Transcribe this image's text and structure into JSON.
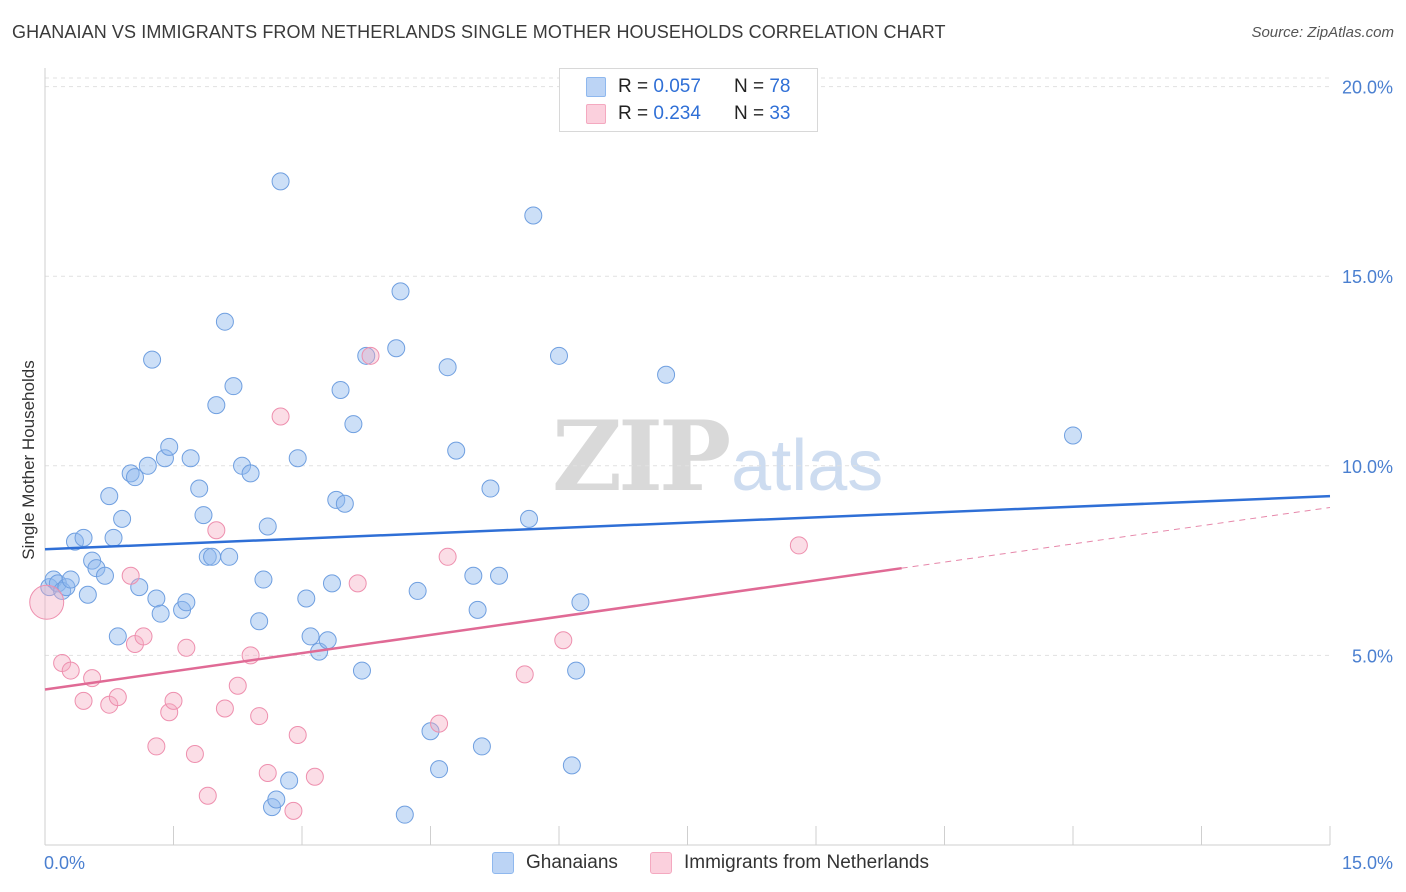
{
  "title": "GHANAIAN VS IMMIGRANTS FROM NETHERLANDS SINGLE MOTHER HOUSEHOLDS CORRELATION CHART",
  "source": "Source: ZipAtlas.com",
  "watermark": {
    "zip": "ZIP",
    "atlas": "atlas"
  },
  "legend": {
    "rows": [
      {
        "r_label": "R =",
        "r_value": "0.057",
        "n_label": "N =",
        "n_value": "78"
      },
      {
        "r_label": "R =",
        "r_value": "0.234",
        "n_label": "N =",
        "n_value": "33"
      }
    ]
  },
  "bottom_legend": [
    "Ghanaians",
    "Immigrants from Netherlands"
  ],
  "chart_data": {
    "type": "scatter",
    "xlabel": "",
    "ylabel": "Single Mother Households",
    "xlim": [
      0,
      15
    ],
    "ylim": [
      0,
      20
    ],
    "x_tick_labels": [
      "0.0%",
      "15.0%"
    ],
    "y_tick_labels": [
      "5.0%",
      "10.0%",
      "15.0%",
      "20.0%"
    ],
    "y_ticks": [
      5,
      10,
      15,
      20
    ],
    "grid": true,
    "legend_position": "top-center",
    "colors": {
      "Ghanaians": "#8fb8ee",
      "Immigrants from Netherlands": "#f4a9c0",
      "line_blue": "#2f6fd6",
      "line_pink": "#e06a95"
    },
    "series": [
      {
        "name": "Ghanaians",
        "r": 0.057,
        "n": 78,
        "trend": {
          "x": [
            0,
            15
          ],
          "y": [
            7.8,
            9.2
          ]
        },
        "points": [
          [
            0.05,
            6.8
          ],
          [
            0.1,
            7.0
          ],
          [
            0.15,
            6.9
          ],
          [
            0.2,
            6.7
          ],
          [
            0.25,
            6.8
          ],
          [
            0.3,
            7.0
          ],
          [
            0.35,
            8.0
          ],
          [
            0.45,
            8.1
          ],
          [
            0.5,
            6.6
          ],
          [
            0.55,
            7.5
          ],
          [
            0.6,
            7.3
          ],
          [
            0.7,
            7.1
          ],
          [
            0.75,
            9.2
          ],
          [
            0.8,
            8.1
          ],
          [
            0.85,
            5.5
          ],
          [
            0.9,
            8.6
          ],
          [
            1.0,
            9.8
          ],
          [
            1.05,
            9.7
          ],
          [
            1.1,
            6.8
          ],
          [
            1.2,
            10.0
          ],
          [
            1.25,
            12.8
          ],
          [
            1.3,
            6.5
          ],
          [
            1.35,
            6.1
          ],
          [
            1.4,
            10.2
          ],
          [
            1.45,
            10.5
          ],
          [
            1.6,
            6.2
          ],
          [
            1.65,
            6.4
          ],
          [
            1.7,
            10.2
          ],
          [
            1.8,
            9.4
          ],
          [
            1.85,
            8.7
          ],
          [
            1.9,
            7.6
          ],
          [
            1.95,
            7.6
          ],
          [
            2.0,
            11.6
          ],
          [
            2.1,
            13.8
          ],
          [
            2.15,
            7.6
          ],
          [
            2.2,
            12.1
          ],
          [
            2.3,
            10.0
          ],
          [
            2.4,
            9.8
          ],
          [
            2.5,
            5.9
          ],
          [
            2.55,
            7.0
          ],
          [
            2.6,
            8.4
          ],
          [
            2.75,
            17.5
          ],
          [
            2.85,
            1.7
          ],
          [
            2.95,
            10.2
          ],
          [
            2.65,
            1.0
          ],
          [
            2.7,
            1.2
          ],
          [
            3.05,
            6.5
          ],
          [
            3.1,
            5.5
          ],
          [
            3.2,
            5.1
          ],
          [
            3.3,
            5.4
          ],
          [
            3.35,
            6.9
          ],
          [
            3.4,
            9.1
          ],
          [
            3.5,
            9.0
          ],
          [
            3.45,
            12.0
          ],
          [
            3.6,
            11.1
          ],
          [
            3.7,
            4.6
          ],
          [
            3.75,
            12.9
          ],
          [
            4.1,
            13.1
          ],
          [
            4.15,
            14.6
          ],
          [
            4.2,
            0.8
          ],
          [
            4.35,
            6.7
          ],
          [
            4.5,
            3.0
          ],
          [
            4.6,
            2.0
          ],
          [
            4.7,
            12.6
          ],
          [
            4.8,
            10.4
          ],
          [
            5.0,
            7.1
          ],
          [
            5.05,
            6.2
          ],
          [
            5.1,
            2.6
          ],
          [
            5.2,
            9.4
          ],
          [
            5.3,
            7.1
          ],
          [
            5.65,
            8.6
          ],
          [
            5.7,
            16.6
          ],
          [
            6.0,
            12.9
          ],
          [
            6.15,
            2.1
          ],
          [
            6.2,
            4.6
          ],
          [
            6.25,
            6.4
          ],
          [
            7.25,
            12.4
          ],
          [
            12.0,
            10.8
          ]
        ]
      },
      {
        "name": "Immigrants from Netherlands",
        "r": 0.234,
        "n": 33,
        "trend": {
          "x": [
            0,
            10
          ],
          "y": [
            4.1,
            7.3
          ],
          "dashed_to": {
            "x": 15,
            "y": 8.9
          }
        },
        "points": [
          [
            0.02,
            6.4
          ],
          [
            0.2,
            4.8
          ],
          [
            0.3,
            4.6
          ],
          [
            0.45,
            3.8
          ],
          [
            0.55,
            4.4
          ],
          [
            0.75,
            3.7
          ],
          [
            0.85,
            3.9
          ],
          [
            1.0,
            7.1
          ],
          [
            1.05,
            5.3
          ],
          [
            1.15,
            5.5
          ],
          [
            1.3,
            2.6
          ],
          [
            1.45,
            3.5
          ],
          [
            1.5,
            3.8
          ],
          [
            1.65,
            5.2
          ],
          [
            1.75,
            2.4
          ],
          [
            1.9,
            1.3
          ],
          [
            2.0,
            8.3
          ],
          [
            2.1,
            3.6
          ],
          [
            2.25,
            4.2
          ],
          [
            2.4,
            5.0
          ],
          [
            2.5,
            3.4
          ],
          [
            2.6,
            1.9
          ],
          [
            2.75,
            11.3
          ],
          [
            2.9,
            0.9
          ],
          [
            2.95,
            2.9
          ],
          [
            3.15,
            1.8
          ],
          [
            3.65,
            6.9
          ],
          [
            3.8,
            12.9
          ],
          [
            4.6,
            3.2
          ],
          [
            4.7,
            7.6
          ],
          [
            5.6,
            4.5
          ],
          [
            6.05,
            5.4
          ],
          [
            8.8,
            7.9
          ]
        ]
      }
    ]
  }
}
